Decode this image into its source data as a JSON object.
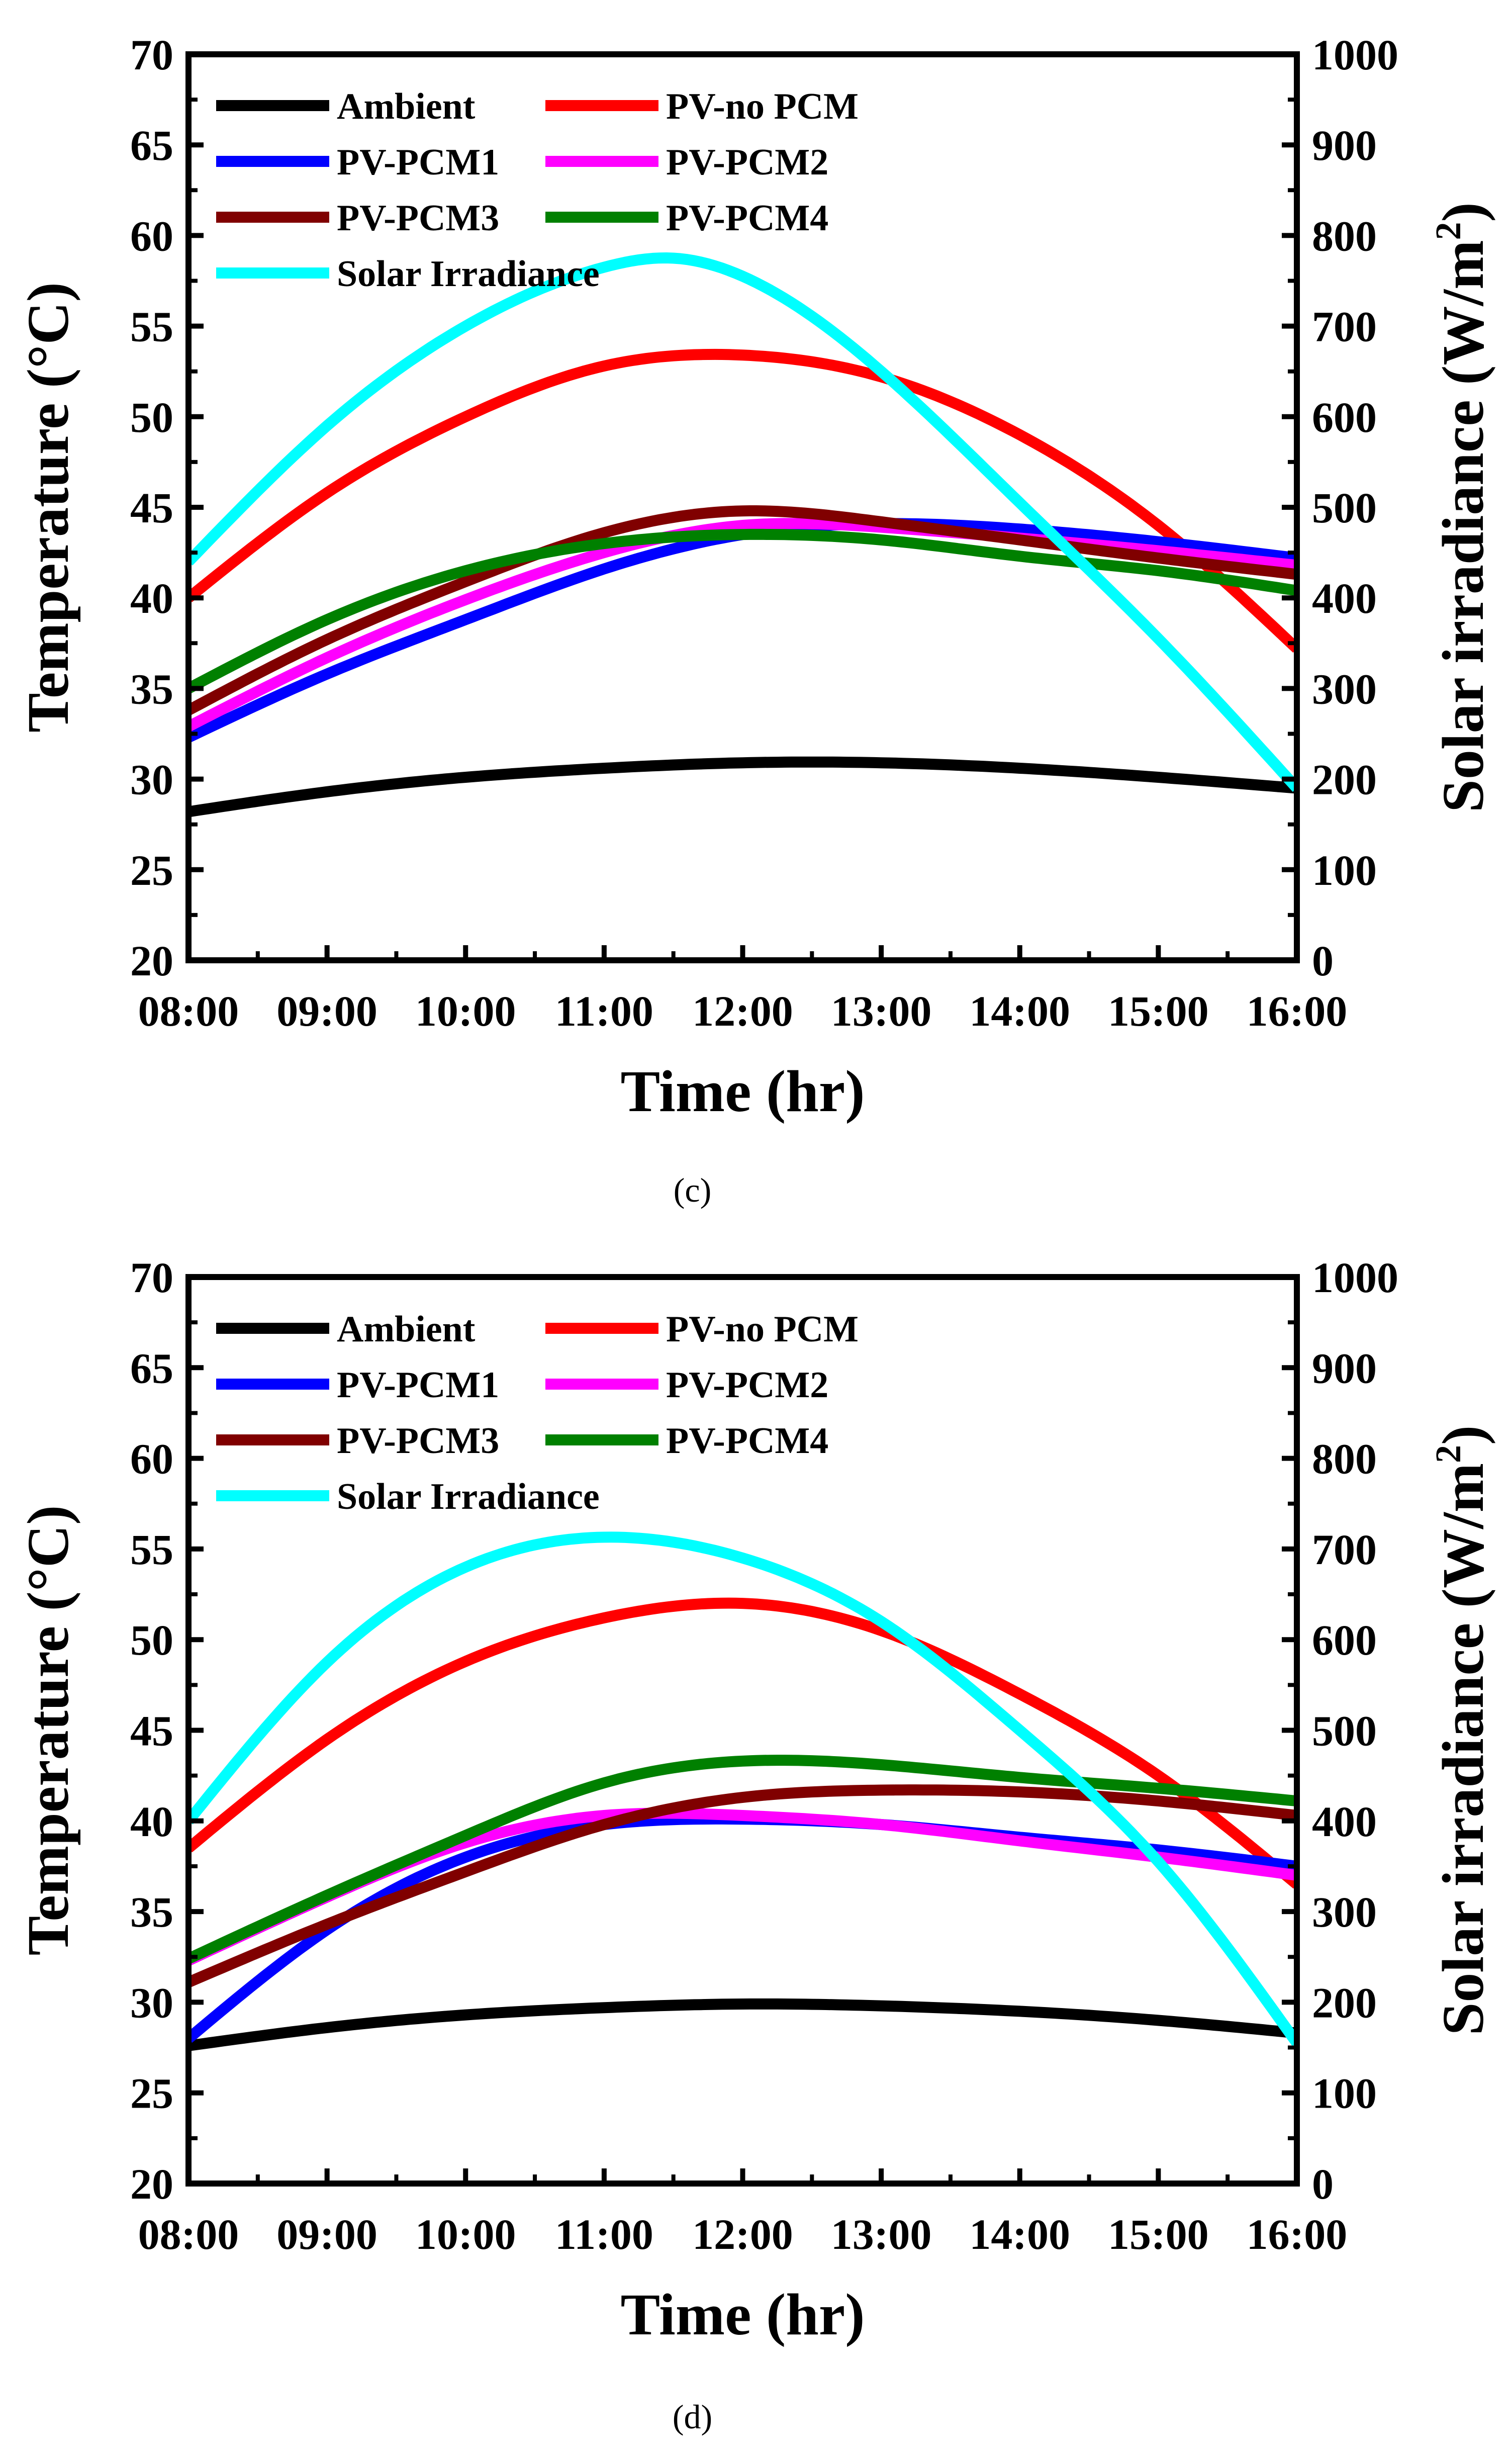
{
  "chart_data": [
    {
      "type": "line",
      "panel_label": "(c)",
      "xlabel": "Time (hr)",
      "ylabel": "Temperature (°C)",
      "y2label_main": "Solar irradiance (W/m",
      "y2label_sup": "2",
      "y2label_end": ")",
      "x_ticks": [
        "08:00",
        "09:00",
        "10:00",
        "11:00",
        "12:00",
        "13:00",
        "14:00",
        "15:00",
        "16:00"
      ],
      "x_hours": [
        8,
        9,
        10,
        11,
        12,
        13,
        14,
        15,
        16
      ],
      "xlim": [
        8,
        16
      ],
      "ylim": [
        20,
        70
      ],
      "y_ticks": [
        "20",
        "25",
        "30",
        "35",
        "40",
        "45",
        "50",
        "55",
        "60",
        "65",
        "70"
      ],
      "y2lim": [
        0,
        1000
      ],
      "y2_ticks": [
        "0",
        "100",
        "200",
        "300",
        "400",
        "500",
        "600",
        "700",
        "800",
        "900",
        "1000"
      ],
      "series": [
        {
          "name": "Ambient",
          "color": "#000000",
          "axis": "left",
          "x": [
            8,
            9,
            10,
            11,
            12,
            13,
            14,
            15,
            16
          ],
          "values": [
            28.2,
            29.3,
            30.1,
            30.6,
            30.9,
            30.9,
            30.6,
            30.1,
            29.5
          ]
        },
        {
          "name": "PV-no PCM",
          "color": "#ff0000",
          "axis": "left",
          "x": [
            8,
            9,
            10,
            11,
            12,
            13,
            14,
            15,
            16
          ],
          "values": [
            40.0,
            45.8,
            50.0,
            52.8,
            53.4,
            52.2,
            49.0,
            44.0,
            37.2
          ]
        },
        {
          "name": "PV-PCM1",
          "color": "#0000ff",
          "axis": "left",
          "x": [
            8,
            9,
            10,
            11,
            12,
            13,
            14,
            15,
            16
          ],
          "values": [
            32.3,
            35.8,
            38.8,
            41.6,
            43.5,
            44.1,
            43.8,
            43.1,
            42.2
          ]
        },
        {
          "name": "PV-PCM2",
          "color": "#ff00ff",
          "axis": "left",
          "x": [
            8,
            9,
            10,
            11,
            12,
            13,
            14,
            15,
            16
          ],
          "values": [
            32.9,
            36.7,
            39.9,
            42.5,
            44.0,
            43.9,
            43.3,
            42.6,
            41.8
          ]
        },
        {
          "name": "PV-PCM3",
          "color": "#800000",
          "axis": "left",
          "x": [
            8,
            9,
            10,
            11,
            12,
            13,
            14,
            15,
            16
          ],
          "values": [
            33.8,
            37.7,
            40.9,
            43.6,
            44.8,
            44.2,
            43.2,
            42.2,
            41.3
          ]
        },
        {
          "name": "PV-PCM4",
          "color": "#008000",
          "axis": "left",
          "x": [
            8,
            9,
            10,
            11,
            12,
            13,
            14,
            15,
            16
          ],
          "values": [
            35.0,
            38.8,
            41.5,
            43.0,
            43.5,
            43.2,
            42.3,
            41.5,
            40.4
          ]
        },
        {
          "name": "Solar Irradiance",
          "color": "#00ffff",
          "axis": "right",
          "x": [
            8,
            9,
            10,
            11,
            11.5,
            12,
            13,
            14,
            15,
            16
          ],
          "values": [
            440,
            590,
            700,
            765,
            775,
            755,
            650,
            505,
            355,
            190
          ]
        }
      ]
    },
    {
      "type": "line",
      "panel_label": "(d)",
      "xlabel": "Time (hr)",
      "ylabel": "Temperature (°C)",
      "y2label_main": "Solar irradiance (W/m",
      "y2label_sup": "2",
      "y2label_end": ")",
      "x_ticks": [
        "08:00",
        "09:00",
        "10:00",
        "11:00",
        "12:00",
        "13:00",
        "14:00",
        "15:00",
        "16:00"
      ],
      "x_hours": [
        8,
        9,
        10,
        11,
        12,
        13,
        14,
        15,
        16
      ],
      "xlim": [
        8,
        16
      ],
      "ylim": [
        20,
        70
      ],
      "y_ticks": [
        "20",
        "25",
        "30",
        "35",
        "40",
        "45",
        "50",
        "55",
        "60",
        "65",
        "70"
      ],
      "y2lim": [
        0,
        1000
      ],
      "y2_ticks": [
        "0",
        "100",
        "200",
        "300",
        "400",
        "500",
        "600",
        "700",
        "800",
        "900",
        "1000"
      ],
      "series": [
        {
          "name": "Ambient",
          "color": "#000000",
          "axis": "left",
          "x": [
            8,
            9,
            10,
            11,
            12,
            13,
            14,
            15,
            16
          ],
          "values": [
            27.6,
            28.6,
            29.3,
            29.7,
            29.9,
            29.8,
            29.5,
            29.0,
            28.3
          ]
        },
        {
          "name": "PV-no PCM",
          "color": "#ff0000",
          "axis": "left",
          "x": [
            8,
            9,
            10,
            11,
            12,
            13,
            14,
            15,
            16
          ],
          "values": [
            38.5,
            44.5,
            48.8,
            51.2,
            52.0,
            50.5,
            47.0,
            42.5,
            36.5
          ]
        },
        {
          "name": "PV-PCM1",
          "color": "#0000ff",
          "axis": "left",
          "x": [
            8,
            9,
            10,
            11,
            12,
            13,
            14,
            15,
            16
          ],
          "values": [
            28.0,
            34.0,
            38.0,
            39.8,
            40.1,
            39.8,
            39.1,
            38.4,
            37.5
          ]
        },
        {
          "name": "PV-PCM2",
          "color": "#ff00ff",
          "axis": "left",
          "x": [
            8,
            9,
            10,
            11,
            12,
            13,
            14,
            15,
            16
          ],
          "values": [
            32.3,
            35.8,
            38.8,
            40.3,
            40.3,
            39.8,
            38.9,
            38.0,
            37.0
          ]
        },
        {
          "name": "PV-PCM3",
          "color": "#800000",
          "axis": "left",
          "x": [
            8,
            9,
            10,
            11,
            12,
            13,
            14,
            15,
            16
          ],
          "values": [
            31.1,
            34.3,
            37.2,
            39.8,
            41.3,
            41.7,
            41.6,
            41.1,
            40.3
          ]
        },
        {
          "name": "PV-PCM4",
          "color": "#008000",
          "axis": "left",
          "x": [
            8,
            9,
            10,
            11,
            12,
            13,
            14,
            15,
            16
          ],
          "values": [
            32.4,
            35.9,
            39.2,
            42.1,
            43.3,
            43.1,
            42.4,
            41.8,
            41.1
          ]
        },
        {
          "name": "Solar Irradiance",
          "color": "#00ffff",
          "axis": "right",
          "x": [
            8,
            9,
            10,
            11,
            12,
            13,
            14,
            15,
            16
          ],
          "values": [
            400,
            575,
            680,
            713,
            690,
            620,
            500,
            355,
            155
          ]
        }
      ]
    }
  ]
}
